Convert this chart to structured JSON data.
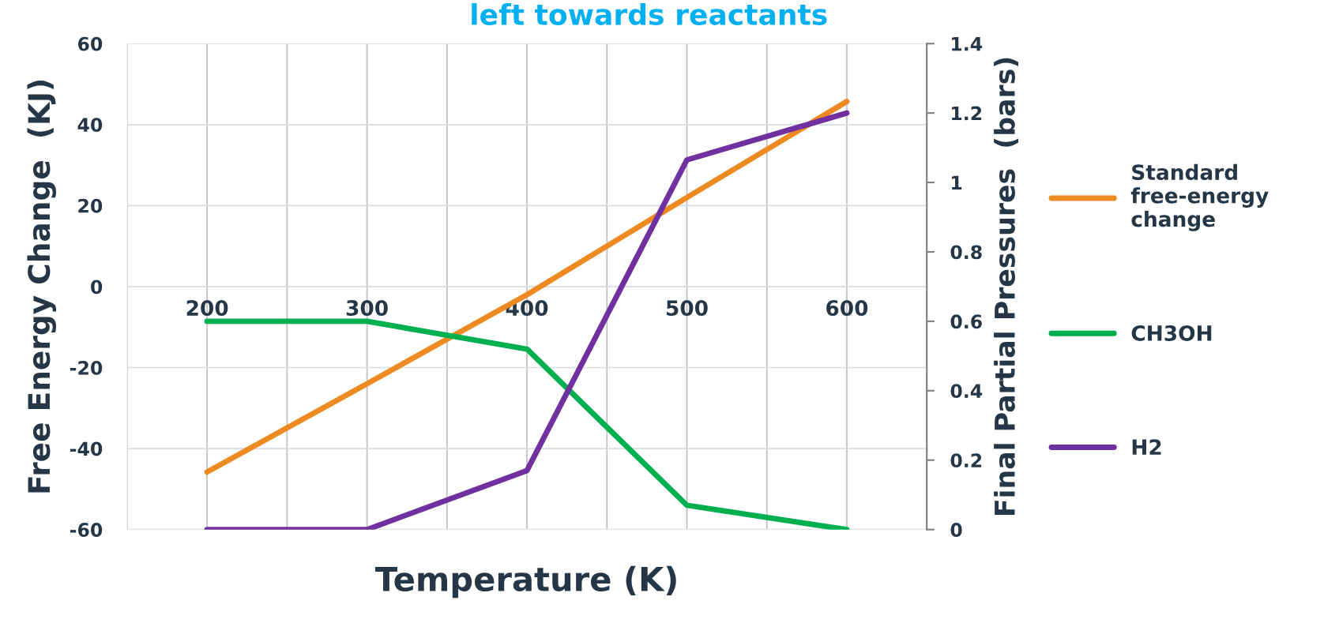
{
  "chart_data": {
    "type": "line",
    "title": "left towards reactants",
    "xlabel": "Temperature (K)",
    "ylabel": "Free Energy Change  (KJ)",
    "y2label": "Final Partial Pressures  (bars)",
    "x": [
      200,
      300,
      400,
      500,
      600
    ],
    "xlim": [
      150,
      650
    ],
    "xticks": [
      {
        "value": 150,
        "label": null
      },
      200,
      {
        "value": 250,
        "label": null
      },
      300,
      {
        "value": 350,
        "label": null
      },
      400,
      {
        "value": 450,
        "label": null
      },
      500,
      {
        "value": 550,
        "label": null
      },
      600,
      {
        "value": 650,
        "label": null
      }
    ],
    "ylim": [
      -60,
      60
    ],
    "yticks": [
      -60,
      -40,
      -20,
      0,
      20,
      40,
      60
    ],
    "y2lim": [
      0,
      1.4
    ],
    "y2ticks": [
      0,
      0.2,
      0.4,
      0.6,
      0.8,
      1,
      1.2,
      1.4
    ],
    "series": [
      {
        "name": "Standard\nfree-energy\nchange",
        "color": "#ed8b22",
        "values": [
          -45.8,
          -24,
          -2,
          22,
          45.7
        ]
      },
      {
        "name": "CH3OH",
        "color": "#00b050",
        "values": [
          0.6,
          0.6,
          0.52,
          0.07,
          0
        ],
        "axis": "y2"
      },
      {
        "name": "H2",
        "color": "#7030a0",
        "values": [
          0,
          0,
          0.17,
          1.065,
          1.2
        ],
        "axis": "y2"
      }
    ],
    "grid": true,
    "legend": "right",
    "marker": "none",
    "line_style": "solid"
  }
}
